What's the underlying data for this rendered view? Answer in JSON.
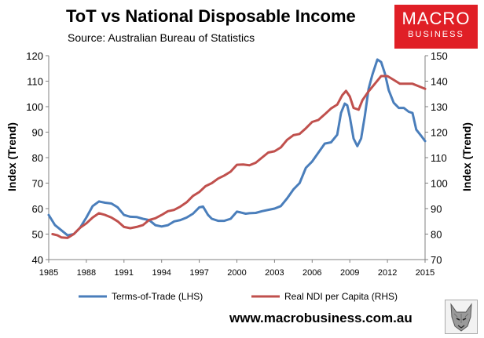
{
  "header": {
    "title": "ToT vs National Disposable Income",
    "subtitle": "Source: Australian Bureau of Statistics"
  },
  "logo": {
    "line1": "MACRO",
    "line2": "BUSINESS",
    "color": "#e01f26"
  },
  "footer": {
    "website": "www.macrobusiness.com.au",
    "mascot_icon": "wolf-head-icon"
  },
  "chart_data": {
    "type": "line",
    "xlabel": "",
    "ylabel_left": "Index (Trend)",
    "ylabel_right": "Index (Trend)",
    "xlim": [
      1985,
      2015
    ],
    "ylim_left": [
      40,
      120
    ],
    "ylim_right": [
      70,
      150
    ],
    "x_ticks": [
      "1985",
      "1988",
      "1991",
      "1994",
      "1997",
      "2000",
      "2003",
      "2006",
      "2009",
      "2012",
      "2015"
    ],
    "y_ticks_left": [
      "40",
      "50",
      "60",
      "70",
      "80",
      "90",
      "100",
      "110",
      "120"
    ],
    "y_ticks_right": [
      "70",
      "80",
      "90",
      "100",
      "110",
      "120",
      "130",
      "140",
      "150"
    ],
    "legend_position": "bottom",
    "grid": false,
    "series": [
      {
        "name": "Terms-of-Trade (LHS)",
        "axis": "left",
        "color": "#4a7ebb",
        "points": [
          [
            1985.0,
            57.5
          ],
          [
            1985.5,
            53.5
          ],
          [
            1986.0,
            51.5
          ],
          [
            1986.5,
            49.5
          ],
          [
            1987.0,
            50.0
          ],
          [
            1987.5,
            52.5
          ],
          [
            1988.0,
            56.5
          ],
          [
            1988.5,
            61.0
          ],
          [
            1989.0,
            62.8
          ],
          [
            1989.5,
            62.3
          ],
          [
            1990.0,
            62.0
          ],
          [
            1990.5,
            60.5
          ],
          [
            1991.0,
            57.5
          ],
          [
            1991.5,
            56.8
          ],
          [
            1992.0,
            56.7
          ],
          [
            1992.5,
            56.0
          ],
          [
            1993.0,
            55.5
          ],
          [
            1993.5,
            53.5
          ],
          [
            1994.0,
            53.0
          ],
          [
            1994.5,
            53.5
          ],
          [
            1995.0,
            55.0
          ],
          [
            1995.5,
            55.5
          ],
          [
            1996.0,
            56.5
          ],
          [
            1996.5,
            58.0
          ],
          [
            1997.0,
            60.5
          ],
          [
            1997.3,
            60.8
          ],
          [
            1997.7,
            57.5
          ],
          [
            1998.0,
            56.0
          ],
          [
            1998.5,
            55.2
          ],
          [
            1999.0,
            55.2
          ],
          [
            1999.5,
            56.0
          ],
          [
            2000.0,
            58.8
          ],
          [
            2000.3,
            58.5
          ],
          [
            2000.7,
            58.0
          ],
          [
            2001.0,
            58.2
          ],
          [
            2001.5,
            58.3
          ],
          [
            2002.0,
            59.0
          ],
          [
            2002.5,
            59.5
          ],
          [
            2003.0,
            60.0
          ],
          [
            2003.5,
            61.0
          ],
          [
            2004.0,
            64.0
          ],
          [
            2004.5,
            67.5
          ],
          [
            2005.0,
            70.0
          ],
          [
            2005.5,
            76.0
          ],
          [
            2006.0,
            78.5
          ],
          [
            2006.5,
            82.0
          ],
          [
            2007.0,
            85.5
          ],
          [
            2007.5,
            86.0
          ],
          [
            2008.0,
            89.0
          ],
          [
            2008.3,
            97.5
          ],
          [
            2008.6,
            101.2
          ],
          [
            2008.8,
            100.5
          ],
          [
            2009.0,
            96.0
          ],
          [
            2009.3,
            87.5
          ],
          [
            2009.6,
            84.5
          ],
          [
            2009.9,
            87.5
          ],
          [
            2010.2,
            96.5
          ],
          [
            2010.5,
            107.0
          ],
          [
            2010.8,
            112.5
          ],
          [
            2011.2,
            118.5
          ],
          [
            2011.5,
            117.5
          ],
          [
            2011.8,
            113.0
          ],
          [
            2012.1,
            106.5
          ],
          [
            2012.5,
            101.5
          ],
          [
            2012.9,
            99.5
          ],
          [
            2013.3,
            99.5
          ],
          [
            2013.7,
            98.0
          ],
          [
            2014.0,
            97.5
          ],
          [
            2014.3,
            91.0
          ],
          [
            2014.7,
            88.5
          ],
          [
            2015.0,
            86.5
          ]
        ]
      },
      {
        "name": "Real NDI per Capita (RHS)",
        "axis": "right",
        "color": "#c0504d",
        "points": [
          [
            1985.3,
            80.0
          ],
          [
            1985.7,
            79.5
          ],
          [
            1986.0,
            78.7
          ],
          [
            1986.5,
            78.5
          ],
          [
            1987.0,
            80.0
          ],
          [
            1987.5,
            82.5
          ],
          [
            1988.0,
            84.2
          ],
          [
            1988.5,
            86.5
          ],
          [
            1989.0,
            88.2
          ],
          [
            1989.5,
            87.5
          ],
          [
            1990.0,
            86.5
          ],
          [
            1990.5,
            85.0
          ],
          [
            1991.0,
            82.8
          ],
          [
            1991.5,
            82.3
          ],
          [
            1992.0,
            82.8
          ],
          [
            1992.5,
            83.5
          ],
          [
            1993.0,
            85.5
          ],
          [
            1993.5,
            86.2
          ],
          [
            1994.0,
            87.5
          ],
          [
            1994.5,
            89.0
          ],
          [
            1995.0,
            89.5
          ],
          [
            1995.5,
            90.8
          ],
          [
            1996.0,
            92.5
          ],
          [
            1996.5,
            95.0
          ],
          [
            1997.0,
            96.5
          ],
          [
            1997.5,
            98.8
          ],
          [
            1998.0,
            100.0
          ],
          [
            1998.5,
            101.8
          ],
          [
            1999.0,
            103.0
          ],
          [
            1999.5,
            104.5
          ],
          [
            2000.0,
            107.2
          ],
          [
            2000.5,
            107.3
          ],
          [
            2001.0,
            107.0
          ],
          [
            2001.5,
            108.0
          ],
          [
            2002.0,
            110.0
          ],
          [
            2002.5,
            112.0
          ],
          [
            2003.0,
            112.5
          ],
          [
            2003.5,
            114.0
          ],
          [
            2004.0,
            117.0
          ],
          [
            2004.5,
            118.8
          ],
          [
            2005.0,
            119.3
          ],
          [
            2005.5,
            121.5
          ],
          [
            2006.0,
            124.0
          ],
          [
            2006.5,
            124.8
          ],
          [
            2007.0,
            127.0
          ],
          [
            2007.5,
            129.3
          ],
          [
            2008.0,
            130.8
          ],
          [
            2008.4,
            134.5
          ],
          [
            2008.7,
            136.2
          ],
          [
            2009.0,
            134.0
          ],
          [
            2009.3,
            129.5
          ],
          [
            2009.7,
            128.8
          ],
          [
            2010.0,
            132.5
          ],
          [
            2010.5,
            136.0
          ],
          [
            2011.0,
            139.0
          ],
          [
            2011.5,
            142.0
          ],
          [
            2012.0,
            142.0
          ],
          [
            2012.5,
            140.5
          ],
          [
            2013.0,
            139.0
          ],
          [
            2013.5,
            139.0
          ],
          [
            2014.0,
            139.0
          ],
          [
            2014.5,
            138.0
          ],
          [
            2015.0,
            137.0
          ]
        ]
      }
    ]
  }
}
